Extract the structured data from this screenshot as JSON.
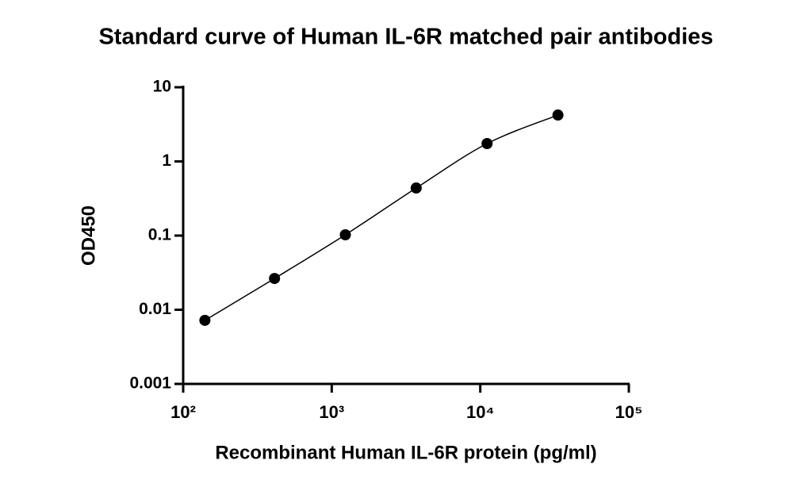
{
  "chart_data": {
    "type": "line",
    "title": "Standard curve of Human IL-6R matched pair antibodies",
    "x_label": "Recombinant Human IL-6R protein (pg/ml)",
    "y_label": "OD450",
    "x_scale": "log",
    "y_scale": "log",
    "xlim": [
      100,
      100000
    ],
    "ylim": [
      0.001,
      10
    ],
    "xticks": [
      {
        "value": 100,
        "label": "10²"
      },
      {
        "value": 1000,
        "label": "10³"
      },
      {
        "value": 10000,
        "label": "10⁴"
      },
      {
        "value": 100000,
        "label": "10⁵"
      }
    ],
    "yticks": [
      0.001,
      0.01,
      0.1,
      1,
      10
    ],
    "x": [
      140,
      412,
      1235,
      3704,
      11111,
      33333
    ],
    "series": [
      {
        "color": "#000000",
        "values": [
          0.0072,
          0.0264,
          0.1025,
          0.438,
          1.74,
          4.22
        ]
      }
    ],
    "markers": true,
    "smooth": true
  }
}
